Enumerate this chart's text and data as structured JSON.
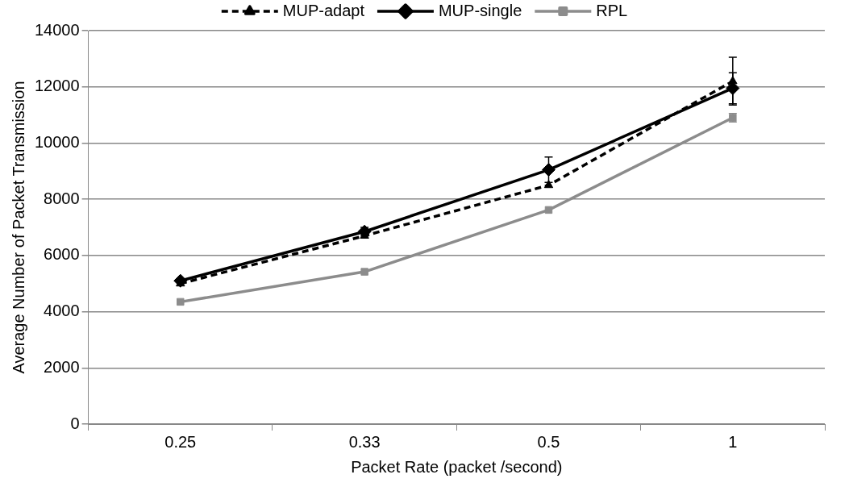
{
  "chart_data": {
    "type": "line",
    "xlabel": "Packet Rate (packet /second)",
    "ylabel": "Average Number of Packet Transmission",
    "categories": [
      "0.25",
      "0.33",
      "0.5",
      "1"
    ],
    "series": [
      {
        "name": "MUP-adapt",
        "color": "#000000",
        "values": [
          5000,
          6700,
          8500,
          12200
        ],
        "errors": [
          null,
          null,
          null,
          850
        ],
        "marker": "triangle",
        "line_style": "dashed"
      },
      {
        "name": "MUP-single",
        "color": "#000000",
        "values": [
          5100,
          6850,
          9050,
          11950
        ],
        "errors": [
          null,
          150,
          450,
          550
        ],
        "marker": "diamond",
        "line_style": "solid"
      },
      {
        "name": "RPL",
        "color": "#8c8c8c",
        "values": [
          4350,
          5420,
          7620,
          10900
        ],
        "errors": [
          null,
          null,
          null,
          150
        ],
        "marker": "square",
        "line_style": "solid"
      }
    ],
    "ylim": [
      0,
      14000
    ],
    "yticks": [
      0,
      2000,
      4000,
      6000,
      8000,
      10000,
      12000,
      14000
    ],
    "grid": "y",
    "legend": "top"
  }
}
